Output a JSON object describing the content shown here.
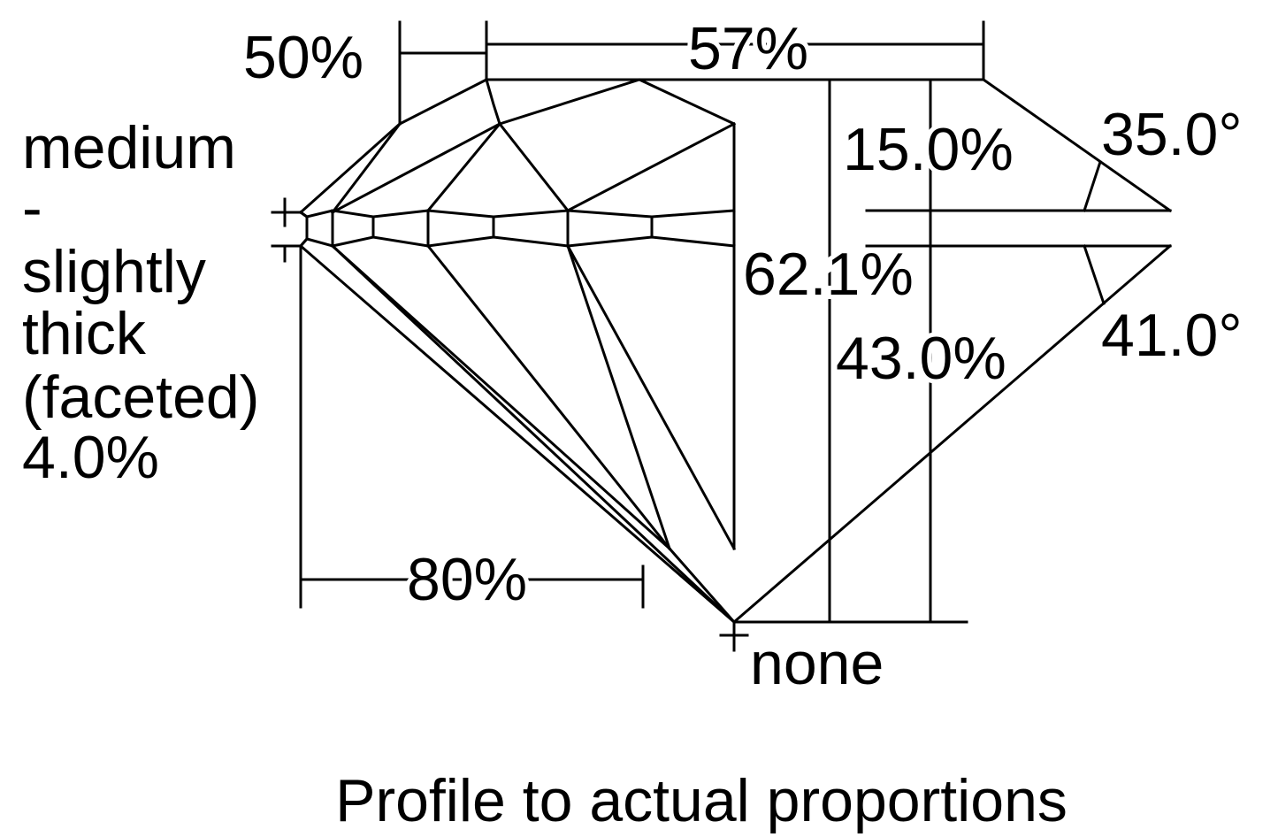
{
  "labels": {
    "star_length": "50%",
    "table": "57%",
    "crown_height": "15.0%",
    "crown_angle": "35.0°",
    "total_depth": "62.1%",
    "pavilion_depth": "43.0%",
    "pavilion_angle": "41.0°",
    "lower_half": "80%",
    "culet": "none",
    "girdle": [
      "medium",
      "-",
      "slightly",
      "thick",
      "(faceted)",
      "4.0%"
    ],
    "caption": "Profile to actual proportions"
  }
}
